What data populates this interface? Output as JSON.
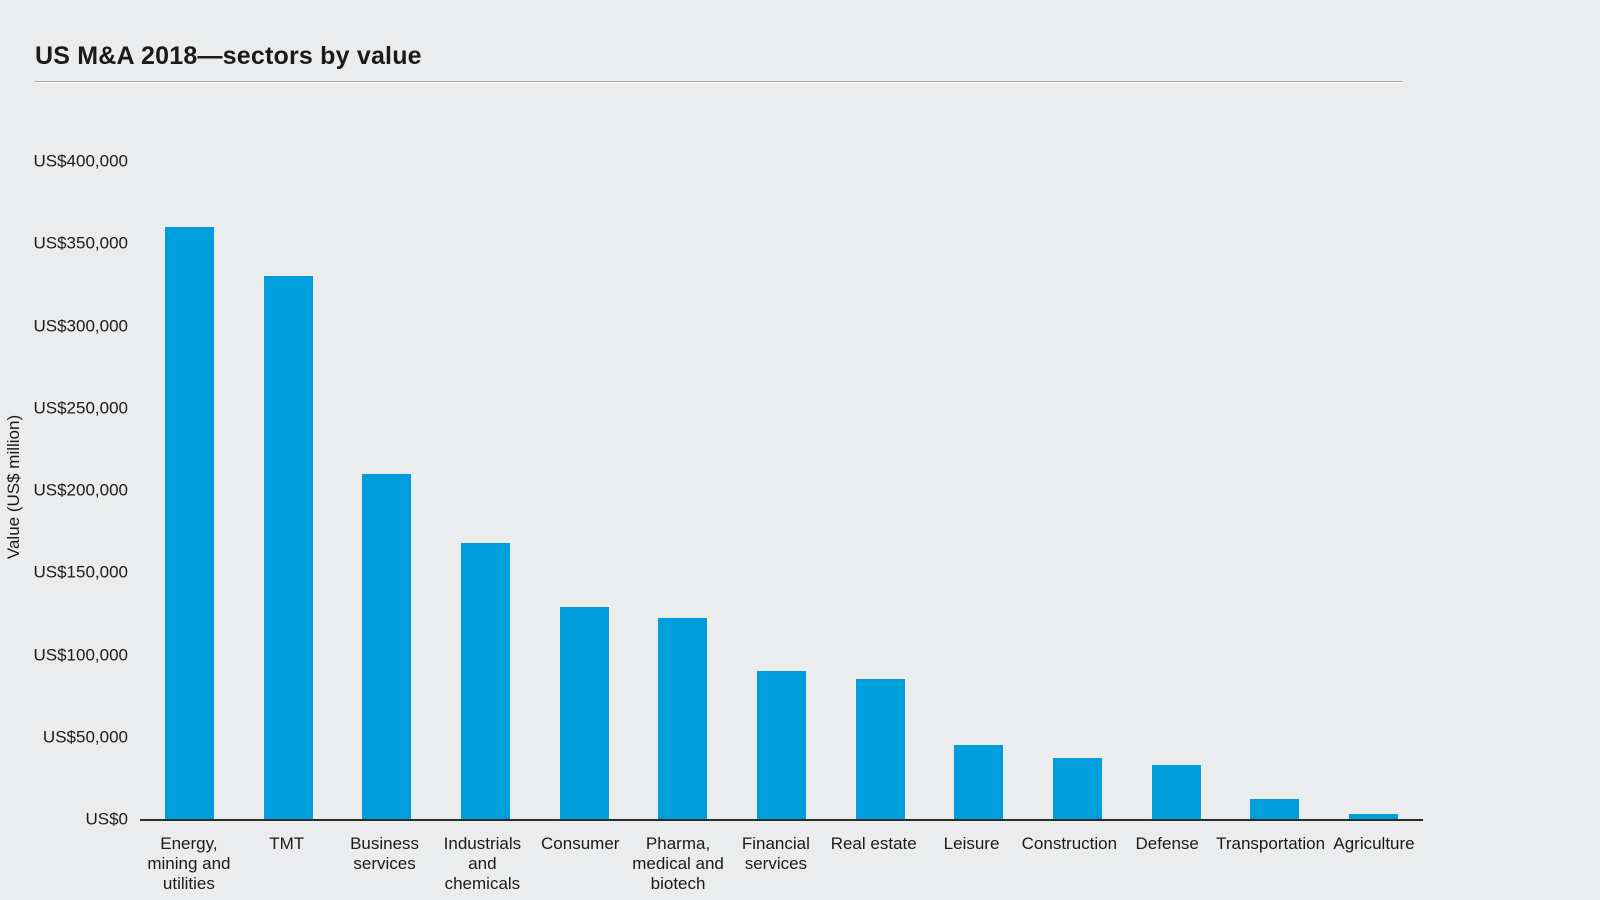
{
  "page": {
    "title": "US M&A 2018—sectors by value"
  },
  "colors": {
    "bar": "#009edb",
    "background": "#ebeced",
    "axis_line": "#2d2d2d",
    "title_rule": "#a5a5a5",
    "text": "#1a1a1a"
  },
  "chart_data": {
    "type": "bar",
    "title": "US M&A 2018—sectors by value",
    "xlabel": "",
    "ylabel": "Value (US$ million)",
    "ylim": [
      0,
      400000
    ],
    "grid": false,
    "legend": false,
    "bar_color": "#009edb",
    "yticks": [
      {
        "label": "US$0",
        "value": 0
      },
      {
        "label": "US$50,000",
        "value": 50000
      },
      {
        "label": "US$100,000",
        "value": 100000
      },
      {
        "label": "US$150,000",
        "value": 150000
      },
      {
        "label": "US$200,000",
        "value": 200000
      },
      {
        "label": "US$250,000",
        "value": 250000
      },
      {
        "label": "US$300,000",
        "value": 300000
      },
      {
        "label": "US$350,000",
        "value": 350000
      },
      {
        "label": "US$400,000",
        "value": 400000
      }
    ],
    "categories": [
      "Energy, mining and utilities",
      "TMT",
      "Business services",
      "Industrials and chemicals",
      "Consumer",
      "Pharma, medical and biotech",
      "Financial services",
      "Real estate",
      "Leisure",
      "Construction",
      "Defense",
      "Transportation",
      "Agriculture"
    ],
    "category_label_lines": [
      [
        "Energy,",
        "mining and",
        "utilities"
      ],
      [
        "TMT"
      ],
      [
        "Business",
        "services"
      ],
      [
        "Industrials",
        "and",
        "chemicals"
      ],
      [
        "Consumer"
      ],
      [
        "Pharma,",
        "medical and",
        "biotech"
      ],
      [
        "Financial",
        "services"
      ],
      [
        "Real estate"
      ],
      [
        "Leisure"
      ],
      [
        "Construction"
      ],
      [
        "Defense"
      ],
      [
        "Transportation"
      ],
      [
        "Agriculture"
      ]
    ],
    "values": [
      360000,
      330000,
      210000,
      168000,
      129000,
      122000,
      90000,
      85000,
      45000,
      37000,
      33000,
      12000,
      3000
    ]
  }
}
